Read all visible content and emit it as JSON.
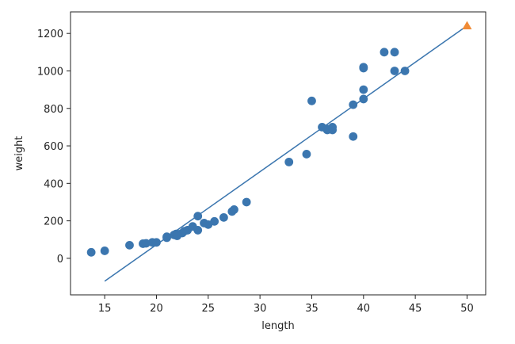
{
  "chart_data": {
    "type": "scatter",
    "title": "",
    "xlabel": "length",
    "ylabel": "weight",
    "xlim": [
      11.7,
      51.8
    ],
    "ylim": [
      -195,
      1315
    ],
    "xticks": [
      15,
      20,
      25,
      30,
      35,
      40,
      45,
      50
    ],
    "yticks": [
      0,
      200,
      400,
      600,
      800,
      1000,
      1200
    ],
    "grid": false,
    "colors": {
      "points": "#3b76af",
      "fit_line": "#3b76af",
      "prediction": "#f08b36",
      "axes": "#222222"
    },
    "series": [
      {
        "kind": "scatter",
        "marker": "circle",
        "x": [
          13.7,
          15.0,
          17.4,
          18.7,
          19.0,
          19.6,
          20.0,
          21.0,
          21.0,
          21.7,
          21.9,
          22.0,
          22.0,
          22.5,
          22.7,
          23.0,
          23.5,
          24.0,
          24.0,
          24.6,
          25.0,
          25.6,
          26.5,
          27.3,
          27.5,
          28.7,
          32.8,
          34.5,
          35.0,
          36.0,
          36.5,
          36.5,
          37.0,
          37.0,
          39.0,
          39.0,
          40.0,
          40.0,
          40.0,
          40.0,
          42.0,
          43.0,
          43.0,
          44.0
        ],
        "y": [
          32,
          40,
          70,
          78,
          80,
          85,
          85,
          110,
          115,
          125,
          130,
          120,
          130,
          135,
          145,
          150,
          170,
          150,
          225,
          188,
          180,
          197,
          218,
          250,
          260,
          300,
          514,
          556,
          840,
          700,
          685,
          690,
          685,
          700,
          650,
          820,
          850,
          900,
          1015,
          1020,
          1100,
          1100,
          1000,
          1000
        ]
      },
      {
        "kind": "line",
        "x": [
          15,
          50
        ],
        "y": [
          -122,
          1241
        ]
      },
      {
        "kind": "scatter",
        "marker": "triangle",
        "x": [
          50
        ],
        "y": [
          1241
        ]
      }
    ]
  }
}
